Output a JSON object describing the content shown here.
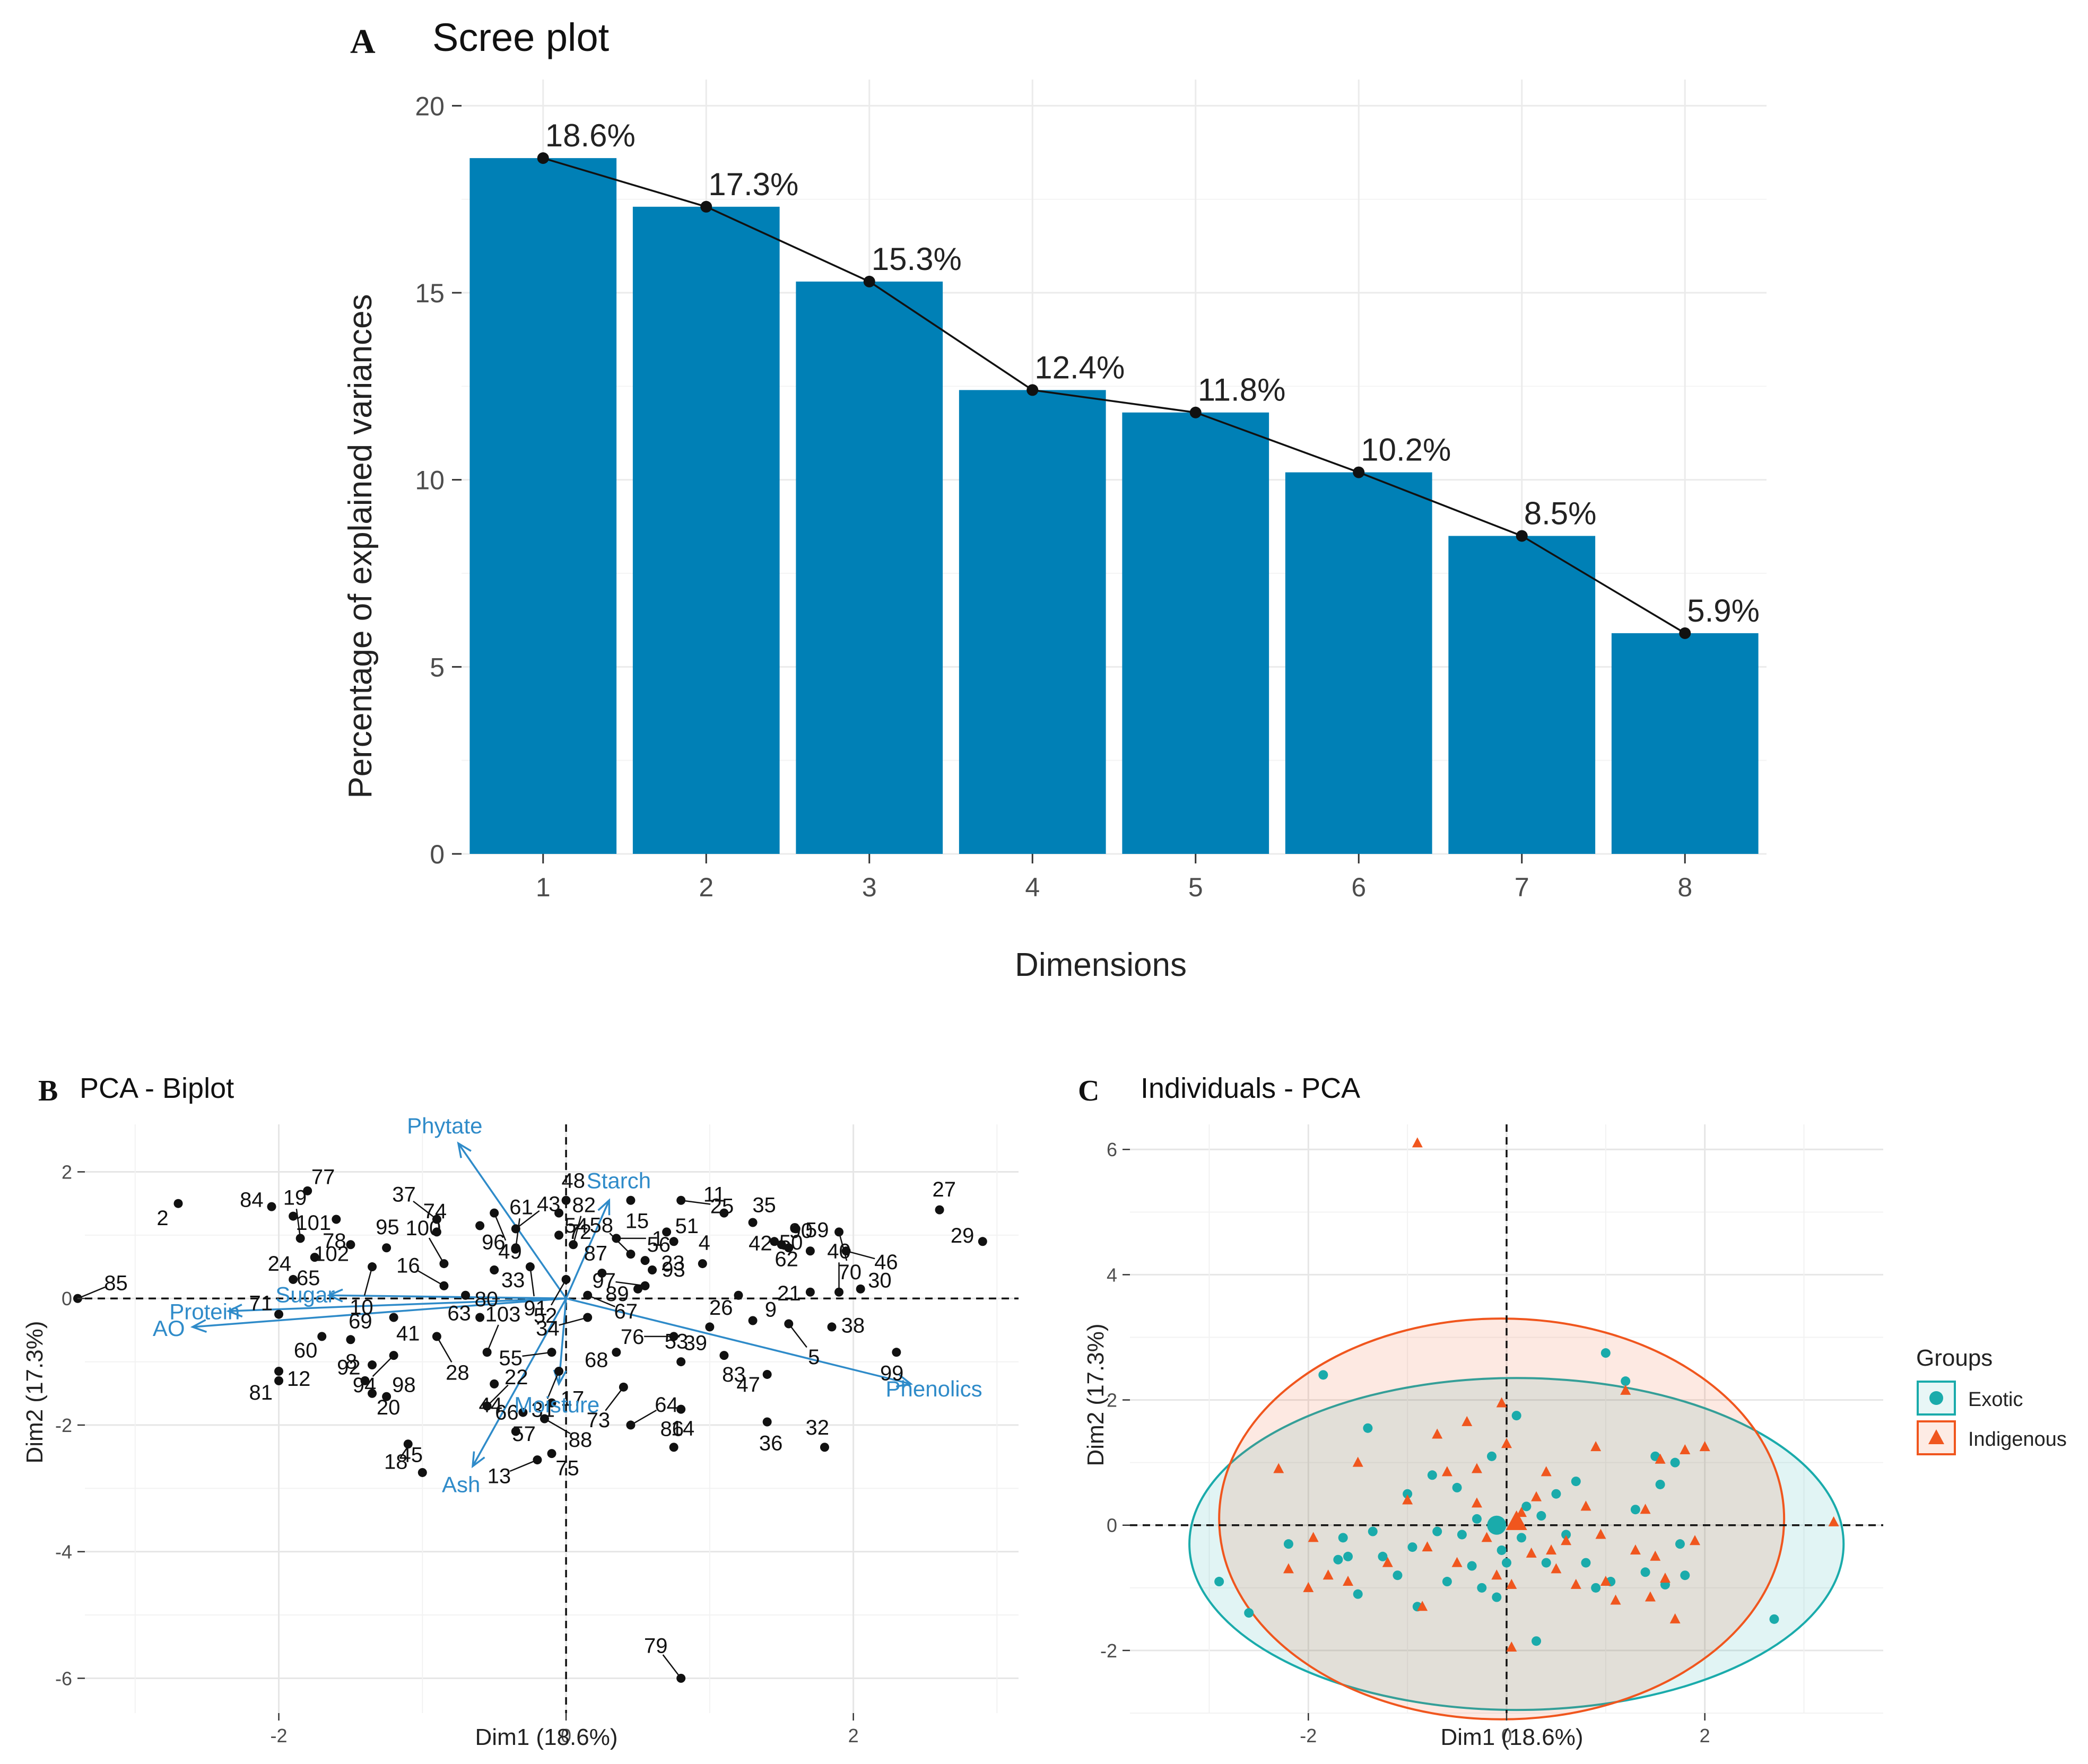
{
  "panels": {
    "a": {
      "letter": "A",
      "title": "Scree plot"
    },
    "b": {
      "letter": "B",
      "title": "PCA - Biplot"
    },
    "c": {
      "letter": "C",
      "title": "Individuals - PCA"
    }
  },
  "colors": {
    "bar": "#0080B6",
    "grid": "#EBEBEB",
    "axis_text": "#4D4D4D",
    "arrow": "#2F8BC9",
    "exotic": "#1AABAB",
    "indigenous": "#F0561E"
  },
  "chart_data": [
    {
      "id": "scree",
      "type": "bar",
      "title": "Scree plot",
      "xlabel": "Dimensions",
      "ylabel": "Percentage of explained variances",
      "categories": [
        "1",
        "2",
        "3",
        "4",
        "5",
        "6",
        "7",
        "8"
      ],
      "values": [
        18.6,
        17.3,
        15.3,
        12.4,
        11.8,
        10.2,
        8.5,
        5.9
      ],
      "data_labels": [
        "18.6%",
        "17.3%",
        "15.3%",
        "12.4%",
        "11.8%",
        "10.2%",
        "8.5%",
        "5.9%"
      ],
      "ylim": [
        0,
        20.7
      ],
      "yticks": [
        0,
        5,
        10,
        15,
        20
      ],
      "line_overlay": true,
      "grid": true
    },
    {
      "id": "biplot",
      "type": "scatter",
      "title": "PCA - Biplot",
      "xlabel": "Dim1 (18.6%)",
      "ylabel": "Dim2 (17.3%)",
      "xlim": [
        -3.35,
        3.15
      ],
      "ylim": [
        -6.55,
        2.75
      ],
      "xticks": [
        -2,
        0,
        2
      ],
      "yticks": [
        -6,
        -4,
        -2,
        0,
        2
      ],
      "points": [
        {
          "label": "1",
          "x": 0.35,
          "y": 0.95
        },
        {
          "label": "2",
          "x": -2.7,
          "y": 1.5
        },
        {
          "label": "4",
          "x": 0.95,
          "y": 0.55
        },
        {
          "label": "5",
          "x": 1.55,
          "y": -0.4
        },
        {
          "label": "8",
          "x": -1.35,
          "y": -1.05
        },
        {
          "label": "9",
          "x": 1.3,
          "y": -0.35
        },
        {
          "label": "10",
          "x": -1.35,
          "y": 0.5
        },
        {
          "label": "11",
          "x": 1.1,
          "y": 1.35
        },
        {
          "label": "12",
          "x": -2.0,
          "y": -1.15
        },
        {
          "label": "13",
          "x": -0.2,
          "y": -2.55
        },
        {
          "label": "14",
          "x": 0.75,
          "y": -2.35
        },
        {
          "label": "15",
          "x": 0.45,
          "y": 1.55
        },
        {
          "label": "16",
          "x": -0.85,
          "y": 0.2
        },
        {
          "label": "17",
          "x": -0.1,
          "y": -1.65
        },
        {
          "label": "18",
          "x": -1.1,
          "y": -2.3
        },
        {
          "label": "19",
          "x": -1.85,
          "y": 0.95
        },
        {
          "label": "20",
          "x": -1.35,
          "y": -1.5
        },
        {
          "label": "21",
          "x": 1.7,
          "y": 0.1
        },
        {
          "label": "22",
          "x": -0.55,
          "y": -1.7
        },
        {
          "label": "23",
          "x": 0.75,
          "y": 0.9
        },
        {
          "label": "24",
          "x": -1.9,
          "y": 0.3
        },
        {
          "label": "25",
          "x": 0.8,
          "y": 1.55
        },
        {
          "label": "26",
          "x": 1.2,
          "y": 0.05
        },
        {
          "label": "27",
          "x": 2.6,
          "y": 1.4
        },
        {
          "label": "28",
          "x": -0.9,
          "y": -0.6
        },
        {
          "label": "29",
          "x": 2.9,
          "y": 0.9
        },
        {
          "label": "30",
          "x": 2.05,
          "y": 0.15
        },
        {
          "label": "31",
          "x": -0.05,
          "y": -1.15
        },
        {
          "label": "32",
          "x": 1.8,
          "y": -2.35
        },
        {
          "label": "33",
          "x": -0.5,
          "y": 0.45
        },
        {
          "label": "34",
          "x": 0.15,
          "y": -0.3
        },
        {
          "label": "35",
          "x": 1.3,
          "y": 1.2
        },
        {
          "label": "36",
          "x": 1.4,
          "y": -1.95
        },
        {
          "label": "37",
          "x": -0.9,
          "y": 1.25
        },
        {
          "label": "38",
          "x": 1.85,
          "y": -0.45
        },
        {
          "label": "39",
          "x": 1.0,
          "y": -0.45
        },
        {
          "label": "40",
          "x": 1.9,
          "y": 0.1
        },
        {
          "label": "41",
          "x": -1.2,
          "y": -0.3
        },
        {
          "label": "42",
          "x": 1.5,
          "y": 0.85
        },
        {
          "label": "43",
          "x": -0.35,
          "y": 1.1
        },
        {
          "label": "44",
          "x": -0.5,
          "y": -1.35
        },
        {
          "label": "45",
          "x": -1.0,
          "y": -2.75
        },
        {
          "label": "46",
          "x": 1.95,
          "y": 0.75
        },
        {
          "label": "47",
          "x": 1.4,
          "y": -1.2
        },
        {
          "label": "48",
          "x": 0.0,
          "y": 1.55
        },
        {
          "label": "49",
          "x": -0.5,
          "y": 1.35
        },
        {
          "label": "50",
          "x": 1.7,
          "y": 0.75
        },
        {
          "label": "51",
          "x": 0.7,
          "y": 1.05
        },
        {
          "label": "52",
          "x": 0.0,
          "y": 0.3
        },
        {
          "label": "53",
          "x": 0.8,
          "y": -1.0
        },
        {
          "label": "54",
          "x": -0.05,
          "y": 1.35
        },
        {
          "label": "55",
          "x": -0.1,
          "y": -0.85
        },
        {
          "label": "56",
          "x": 0.55,
          "y": 0.6
        },
        {
          "label": "57",
          "x": -0.3,
          "y": -1.8
        },
        {
          "label": "58",
          "x": 0.45,
          "y": 0.7
        },
        {
          "label": "59",
          "x": 1.6,
          "y": 1.1
        },
        {
          "label": "60",
          "x": -1.7,
          "y": -0.6
        },
        {
          "label": "61",
          "x": -0.35,
          "y": 0.8
        },
        {
          "label": "62",
          "x": 1.45,
          "y": 0.9
        },
        {
          "label": "63",
          "x": -0.6,
          "y": -0.3
        },
        {
          "label": "64",
          "x": 0.45,
          "y": -2.0
        },
        {
          "label": "65",
          "x": -1.75,
          "y": 0.65
        },
        {
          "label": "66",
          "x": -0.35,
          "y": -2.1
        },
        {
          "label": "67",
          "x": 0.15,
          "y": 0.05
        },
        {
          "label": "68",
          "x": 0.35,
          "y": -0.85
        },
        {
          "label": "69",
          "x": -1.5,
          "y": -0.65
        },
        {
          "label": "70",
          "x": 1.9,
          "y": 1.05
        },
        {
          "label": "71",
          "x": -2.0,
          "y": -0.25
        },
        {
          "label": "72",
          "x": -0.05,
          "y": 1.0
        },
        {
          "label": "73",
          "x": 0.4,
          "y": -1.4
        },
        {
          "label": "74",
          "x": -0.9,
          "y": 1.05
        },
        {
          "label": "75",
          "x": -0.1,
          "y": -2.45
        },
        {
          "label": "76",
          "x": 0.75,
          "y": -0.6
        },
        {
          "label": "77",
          "x": -1.8,
          "y": 1.7
        },
        {
          "label": "78",
          "x": -1.6,
          "y": 1.25
        },
        {
          "label": "79",
          "x": 0.8,
          "y": -6.0
        },
        {
          "label": "80",
          "x": -0.7,
          "y": 0.05
        },
        {
          "label": "81",
          "x": -2.0,
          "y": -1.3
        },
        {
          "label": "82",
          "x": 0.05,
          "y": 0.85
        },
        {
          "label": "83",
          "x": 1.1,
          "y": -0.9
        },
        {
          "label": "84",
          "x": -2.05,
          "y": 1.45
        },
        {
          "label": "85",
          "x": -3.4,
          "y": 0.0
        },
        {
          "label": "86",
          "x": 0.8,
          "y": -1.75
        },
        {
          "label": "87",
          "x": 0.25,
          "y": 0.4
        },
        {
          "label": "88",
          "x": -0.15,
          "y": -1.9
        },
        {
          "label": "89",
          "x": 0.5,
          "y": 0.15
        },
        {
          "label": "90",
          "x": 1.55,
          "y": 0.8
        },
        {
          "label": "91",
          "x": -0.25,
          "y": 0.5
        },
        {
          "label": "92",
          "x": -1.4,
          "y": -1.3
        },
        {
          "label": "93",
          "x": 0.6,
          "y": 0.45
        },
        {
          "label": "94",
          "x": -1.2,
          "y": -0.9
        },
        {
          "label": "95",
          "x": -1.25,
          "y": 0.8
        },
        {
          "label": "96",
          "x": -0.6,
          "y": 1.15
        },
        {
          "label": "97",
          "x": 0.55,
          "y": 0.2
        },
        {
          "label": "98",
          "x": -1.25,
          "y": -1.55
        },
        {
          "label": "99",
          "x": 2.3,
          "y": -0.85
        },
        {
          "label": "100",
          "x": -0.85,
          "y": 0.55
        },
        {
          "label": "101",
          "x": -1.9,
          "y": 1.3
        },
        {
          "label": "102",
          "x": -1.5,
          "y": 0.85
        },
        {
          "label": "103",
          "x": -0.55,
          "y": -0.85
        }
      ],
      "variables": [
        {
          "name": "Phytate",
          "x": -0.75,
          "y": 2.45
        },
        {
          "name": "Starch",
          "x": 0.3,
          "y": 1.55
        },
        {
          "name": "Protein",
          "x": -2.35,
          "y": -0.2
        },
        {
          "name": "Sugar",
          "x": -1.65,
          "y": 0.05
        },
        {
          "name": "AO",
          "x": -2.6,
          "y": -0.45
        },
        {
          "name": "Moisture",
          "x": -0.05,
          "y": -1.35
        },
        {
          "name": "Ash",
          "x": -0.65,
          "y": -2.65
        },
        {
          "name": "Phenolics",
          "x": 2.4,
          "y": -1.35
        }
      ]
    },
    {
      "id": "individuals",
      "type": "scatter",
      "title": "Individuals - PCA",
      "xlabel": "Dim1 (18.6%)",
      "ylabel": "Dim2 (17.3%)",
      "xlim": [
        -3.8,
        3.8
      ],
      "ylim": [
        -3.0,
        6.4
      ],
      "xticks": [
        -2,
        0,
        2
      ],
      "yticks": [
        -2,
        0,
        2,
        4,
        6
      ],
      "legend_title": "Groups",
      "legend_position": "right",
      "series": [
        {
          "name": "Exotic",
          "marker": "circle",
          "ellipse": {
            "cx": 0.1,
            "cy": -0.3,
            "rx": 3.3,
            "ry": 2.65
          },
          "centroid": {
            "x": -0.1,
            "y": 0.0
          },
          "x": [
            -2.9,
            -2.6,
            -2.2,
            -1.85,
            -1.7,
            -1.65,
            -1.6,
            -1.5,
            -1.4,
            -1.35,
            -1.25,
            -1.1,
            -1.0,
            -0.95,
            -0.9,
            -0.75,
            -0.7,
            -0.6,
            -0.5,
            -0.45,
            -0.35,
            -0.3,
            -0.25,
            -0.15,
            -0.05,
            0.0,
            0.1,
            0.15,
            0.3,
            0.4,
            0.5,
            0.6,
            0.7,
            0.8,
            0.9,
            1.0,
            1.05,
            1.2,
            1.3,
            1.4,
            1.5,
            1.55,
            1.6,
            1.7,
            1.75,
            1.8,
            0.2,
            -0.1,
            2.7,
            0.35
          ],
          "y": [
            -0.9,
            -1.4,
            -0.3,
            2.4,
            -0.55,
            -0.2,
            -0.5,
            -1.1,
            1.55,
            -0.1,
            -0.5,
            -0.8,
            0.5,
            -0.35,
            -1.3,
            0.8,
            -0.1,
            -0.9,
            0.6,
            -0.15,
            -0.65,
            0.1,
            -1.0,
            1.1,
            -0.4,
            -0.6,
            1.75,
            -0.2,
            -1.85,
            -0.6,
            0.5,
            -0.15,
            0.7,
            -0.6,
            -1.0,
            2.75,
            -0.9,
            2.3,
            0.25,
            -0.75,
            1.1,
            0.65,
            -0.95,
            1.0,
            -0.3,
            -0.8,
            0.3,
            -1.15,
            -1.5,
            0.15
          ]
        },
        {
          "name": "Indigenous",
          "marker": "triangle",
          "ellipse": {
            "cx": -0.05,
            "cy": 0.1,
            "rx": 2.85,
            "ry": 3.2
          },
          "centroid": {
            "x": 0.1,
            "y": 0.05
          },
          "x": [
            -0.9,
            -2.3,
            -2.2,
            -2.0,
            -1.95,
            -1.8,
            -1.6,
            -1.5,
            -1.2,
            -1.0,
            -0.85,
            -0.7,
            -0.6,
            -0.5,
            -0.4,
            -0.3,
            -0.2,
            -0.1,
            0.0,
            0.05,
            0.15,
            0.25,
            0.3,
            0.4,
            0.5,
            0.6,
            0.7,
            0.8,
            0.9,
            1.0,
            1.1,
            1.2,
            1.3,
            1.4,
            1.5,
            1.55,
            1.6,
            1.7,
            1.8,
            1.9,
            2.0,
            3.3,
            -0.8,
            -0.3,
            0.05,
            -0.05,
            0.45,
            0.95,
            1.45
          ],
          "y": [
            6.1,
            0.9,
            -0.7,
            -1.0,
            -0.2,
            -0.8,
            -0.9,
            1.0,
            -0.6,
            0.4,
            -1.3,
            1.45,
            0.85,
            -0.6,
            1.65,
            0.9,
            -0.2,
            -0.8,
            1.3,
            -1.95,
            0.2,
            -0.45,
            0.45,
            0.85,
            -0.7,
            -0.25,
            -0.95,
            0.3,
            1.25,
            -0.9,
            -1.2,
            2.15,
            -0.4,
            0.25,
            -0.5,
            1.05,
            -0.85,
            -1.5,
            1.2,
            -0.25,
            1.25,
            0.05,
            -0.35,
            0.35,
            -0.95,
            1.95,
            -0.4,
            -0.15,
            -1.15
          ]
        }
      ]
    }
  ]
}
